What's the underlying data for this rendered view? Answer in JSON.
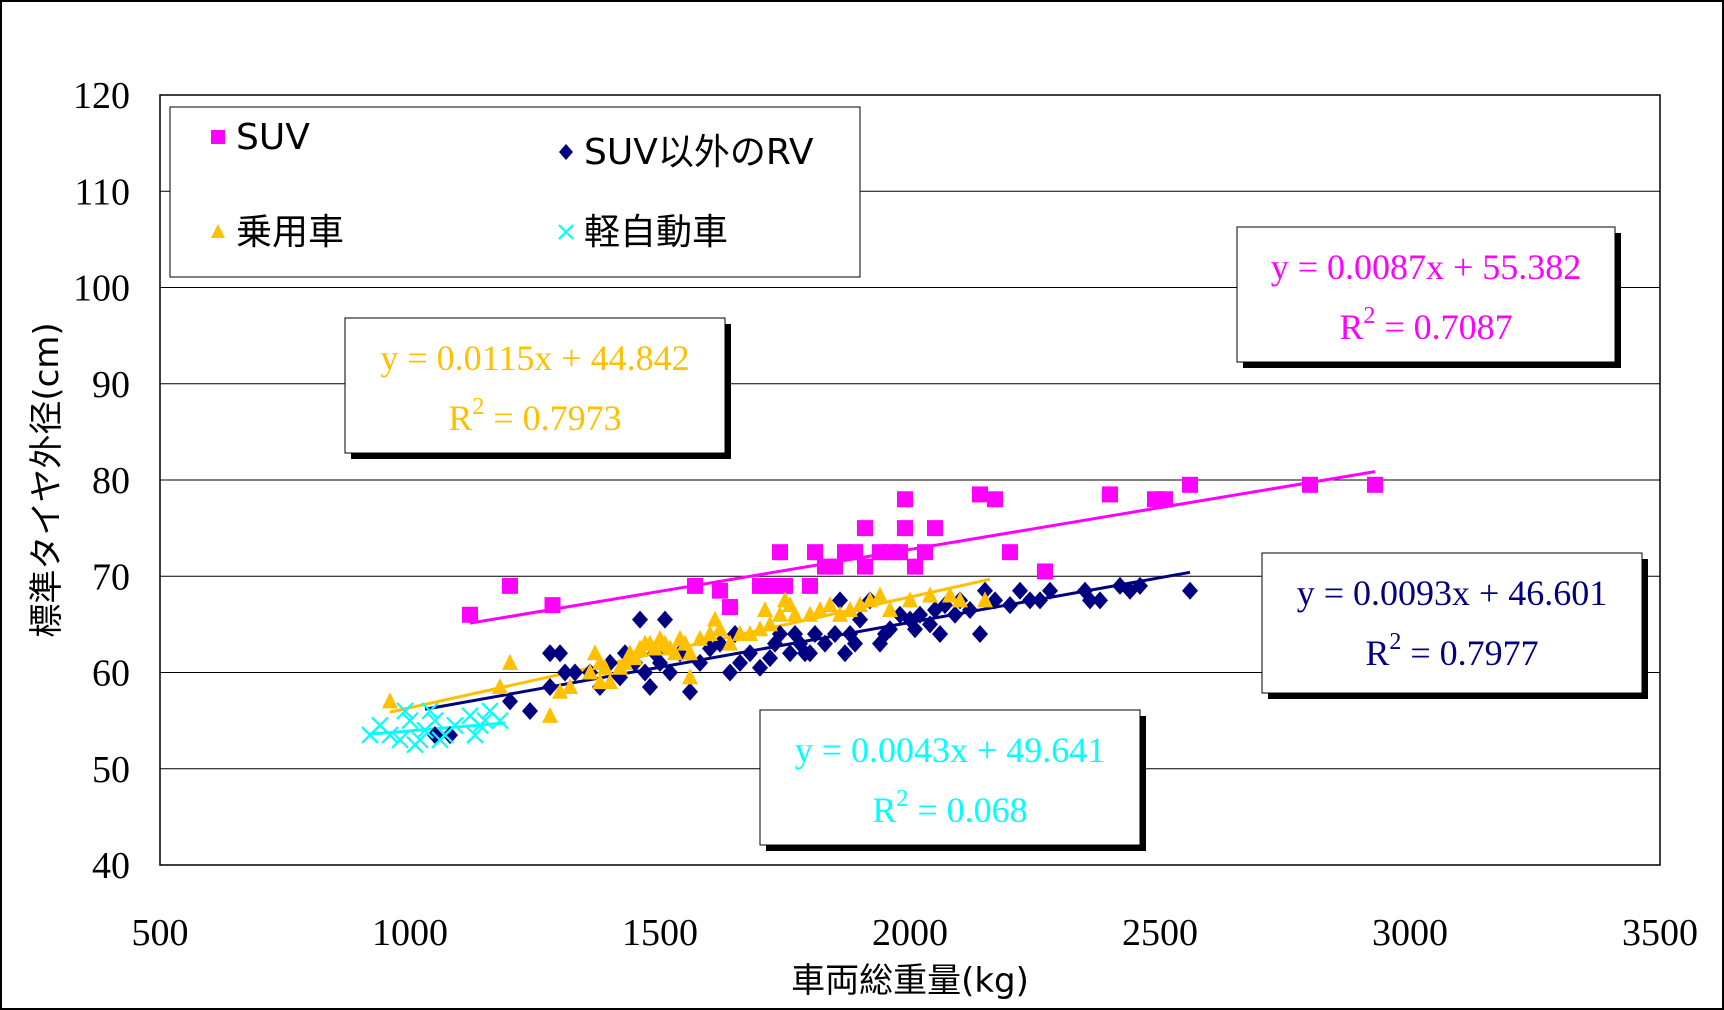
{
  "chart_data": {
    "type": "scatter",
    "xlabel": "車両総重量(kg)",
    "ylabel": "標準タイヤ外径(cm)",
    "xlim": [
      500,
      3500
    ],
    "ylim": [
      40,
      120
    ],
    "xticks": [
      "500",
      "1000",
      "1500",
      "2000",
      "2500",
      "3000",
      "3500"
    ],
    "yticks": [
      "40",
      "50",
      "60",
      "70",
      "80",
      "90",
      "100",
      "110",
      "120"
    ],
    "grid": "horizontal",
    "legend_position": "top-left",
    "series": [
      {
        "name": "SUV",
        "marker": "square",
        "color": "#ff00ff",
        "points": [
          [
            1120,
            66
          ],
          [
            1200,
            69
          ],
          [
            1285,
            67
          ],
          [
            1570,
            69
          ],
          [
            1620,
            68.5
          ],
          [
            1640,
            66.8
          ],
          [
            1700,
            69
          ],
          [
            1720,
            69
          ],
          [
            1740,
            72.5
          ],
          [
            1750,
            69
          ],
          [
            1800,
            69
          ],
          [
            1810,
            72.5
          ],
          [
            1830,
            71
          ],
          [
            1850,
            71
          ],
          [
            1870,
            72.5
          ],
          [
            1890,
            72.5
          ],
          [
            1910,
            71
          ],
          [
            1910,
            75
          ],
          [
            1940,
            72.5
          ],
          [
            1960,
            72.5
          ],
          [
            1980,
            72.5
          ],
          [
            1990,
            75
          ],
          [
            1990,
            78
          ],
          [
            2010,
            71
          ],
          [
            2030,
            72.5
          ],
          [
            2050,
            75
          ],
          [
            2140,
            78.5
          ],
          [
            2170,
            78
          ],
          [
            2200,
            72.5
          ],
          [
            2270,
            70.5
          ],
          [
            2400,
            78.5
          ],
          [
            2490,
            78
          ],
          [
            2510,
            78
          ],
          [
            2560,
            79.5
          ],
          [
            2800,
            79.5
          ],
          [
            2930,
            79.5
          ]
        ],
        "trendline": {
          "x": [
            1120,
            2930
          ],
          "equation": "y = 0.0087x + 55.382",
          "r2_label": "R",
          "r2_sup": "2",
          "r2_value": " = 0.7087"
        }
      },
      {
        "name": "SUV以外のRV",
        "marker": "diamond",
        "color": "#000080",
        "points": [
          [
            1050,
            53.5
          ],
          [
            1080,
            53.5
          ],
          [
            1200,
            57
          ],
          [
            1240,
            56
          ],
          [
            1280,
            58.5
          ],
          [
            1280,
            62
          ],
          [
            1300,
            62
          ],
          [
            1310,
            60
          ],
          [
            1330,
            60
          ],
          [
            1360,
            60
          ],
          [
            1380,
            58.5
          ],
          [
            1400,
            61
          ],
          [
            1420,
            59.5
          ],
          [
            1430,
            62
          ],
          [
            1450,
            61
          ],
          [
            1460,
            65.5
          ],
          [
            1470,
            60
          ],
          [
            1480,
            58.5
          ],
          [
            1490,
            62
          ],
          [
            1500,
            61
          ],
          [
            1510,
            65.5
          ],
          [
            1520,
            60
          ],
          [
            1540,
            62
          ],
          [
            1560,
            58
          ],
          [
            1580,
            61
          ],
          [
            1600,
            62.5
          ],
          [
            1620,
            63
          ],
          [
            1640,
            60
          ],
          [
            1650,
            64
          ],
          [
            1660,
            61
          ],
          [
            1680,
            62
          ],
          [
            1700,
            60.5
          ],
          [
            1720,
            61.5
          ],
          [
            1730,
            63
          ],
          [
            1740,
            64
          ],
          [
            1760,
            62
          ],
          [
            1770,
            64
          ],
          [
            1780,
            63
          ],
          [
            1790,
            62
          ],
          [
            1800,
            62
          ],
          [
            1810,
            64
          ],
          [
            1830,
            63
          ],
          [
            1850,
            64
          ],
          [
            1860,
            67.5
          ],
          [
            1870,
            62
          ],
          [
            1880,
            64
          ],
          [
            1890,
            63
          ],
          [
            1900,
            65.5
          ],
          [
            1920,
            67.5
          ],
          [
            1940,
            63
          ],
          [
            1950,
            64
          ],
          [
            1960,
            64.5
          ],
          [
            1980,
            66
          ],
          [
            2000,
            65.5
          ],
          [
            2010,
            64.5
          ],
          [
            2020,
            66
          ],
          [
            2040,
            65
          ],
          [
            2050,
            66.5
          ],
          [
            2060,
            64
          ],
          [
            2070,
            67
          ],
          [
            2090,
            66
          ],
          [
            2100,
            67.5
          ],
          [
            2120,
            66.5
          ],
          [
            2140,
            64
          ],
          [
            2150,
            68.5
          ],
          [
            2170,
            67.5
          ],
          [
            2200,
            67
          ],
          [
            2220,
            68.5
          ],
          [
            2240,
            67.5
          ],
          [
            2260,
            67.5
          ],
          [
            2280,
            68.5
          ],
          [
            2350,
            68.5
          ],
          [
            2360,
            67.5
          ],
          [
            2380,
            67.5
          ],
          [
            2420,
            69
          ],
          [
            2440,
            68.5
          ],
          [
            2460,
            69
          ],
          [
            2560,
            68.5
          ]
        ],
        "trendline": {
          "x": [
            1030,
            2560
          ],
          "equation": "y = 0.0093x + 46.601",
          "r2_label": "R",
          "r2_sup": "2",
          "r2_value": " = 0.7977"
        }
      },
      {
        "name": "乗用車",
        "marker": "triangle",
        "color": "#ffc000",
        "points": [
          [
            960,
            57
          ],
          [
            1180,
            58.5
          ],
          [
            1200,
            61
          ],
          [
            1280,
            55.5
          ],
          [
            1300,
            58
          ],
          [
            1320,
            58.5
          ],
          [
            1360,
            60
          ],
          [
            1370,
            62
          ],
          [
            1380,
            61
          ],
          [
            1380,
            59
          ],
          [
            1390,
            60.5
          ],
          [
            1400,
            59
          ],
          [
            1420,
            60.5
          ],
          [
            1430,
            61
          ],
          [
            1440,
            62
          ],
          [
            1450,
            61.5
          ],
          [
            1460,
            62.5
          ],
          [
            1470,
            63
          ],
          [
            1480,
            63
          ],
          [
            1490,
            62.5
          ],
          [
            1500,
            63.5
          ],
          [
            1510,
            63
          ],
          [
            1520,
            62.5
          ],
          [
            1530,
            62
          ],
          [
            1540,
            63.5
          ],
          [
            1550,
            63
          ],
          [
            1560,
            59.5
          ],
          [
            1560,
            62
          ],
          [
            1580,
            63.5
          ],
          [
            1600,
            64
          ],
          [
            1610,
            65.5
          ],
          [
            1620,
            64.5
          ],
          [
            1640,
            63
          ],
          [
            1660,
            64
          ],
          [
            1680,
            64
          ],
          [
            1700,
            64.5
          ],
          [
            1710,
            66.5
          ],
          [
            1720,
            65
          ],
          [
            1740,
            66
          ],
          [
            1750,
            67.5
          ],
          [
            1760,
            67
          ],
          [
            1770,
            66
          ],
          [
            1800,
            66
          ],
          [
            1820,
            66.5
          ],
          [
            1840,
            67
          ],
          [
            1860,
            66
          ],
          [
            1880,
            66.5
          ],
          [
            1900,
            67
          ],
          [
            1920,
            67.5
          ],
          [
            1940,
            68
          ],
          [
            1960,
            66.5
          ],
          [
            2000,
            67.5
          ],
          [
            2040,
            68
          ],
          [
            2080,
            68
          ],
          [
            2100,
            67.5
          ],
          [
            2150,
            67.5
          ]
        ],
        "trendline": {
          "x": [
            960,
            2160
          ],
          "equation": "y = 0.0115x + 44.842",
          "r2_label": "R",
          "r2_sup": "2",
          "r2_value": " = 0.7973"
        }
      },
      {
        "name": "軽自動車",
        "marker": "x",
        "color": "#00ffff",
        "points": [
          [
            920,
            53.5
          ],
          [
            940,
            54.5
          ],
          [
            960,
            53.5
          ],
          [
            980,
            53
          ],
          [
            990,
            56
          ],
          [
            1000,
            55
          ],
          [
            1010,
            52.5
          ],
          [
            1020,
            53
          ],
          [
            1030,
            54
          ],
          [
            1040,
            56
          ],
          [
            1050,
            55
          ],
          [
            1060,
            53
          ],
          [
            1070,
            53.5
          ],
          [
            1090,
            54.5
          ],
          [
            1120,
            55.5
          ],
          [
            1130,
            53.5
          ],
          [
            1140,
            54.5
          ],
          [
            1150,
            55
          ],
          [
            1160,
            56
          ],
          [
            1180,
            55
          ]
        ],
        "trendline": {
          "x": [
            920,
            1190
          ],
          "equation": "y = 0.0043x + 49.641",
          "r2_label": "R",
          "r2_sup": "2",
          "r2_value": " = 0.068"
        }
      }
    ]
  }
}
